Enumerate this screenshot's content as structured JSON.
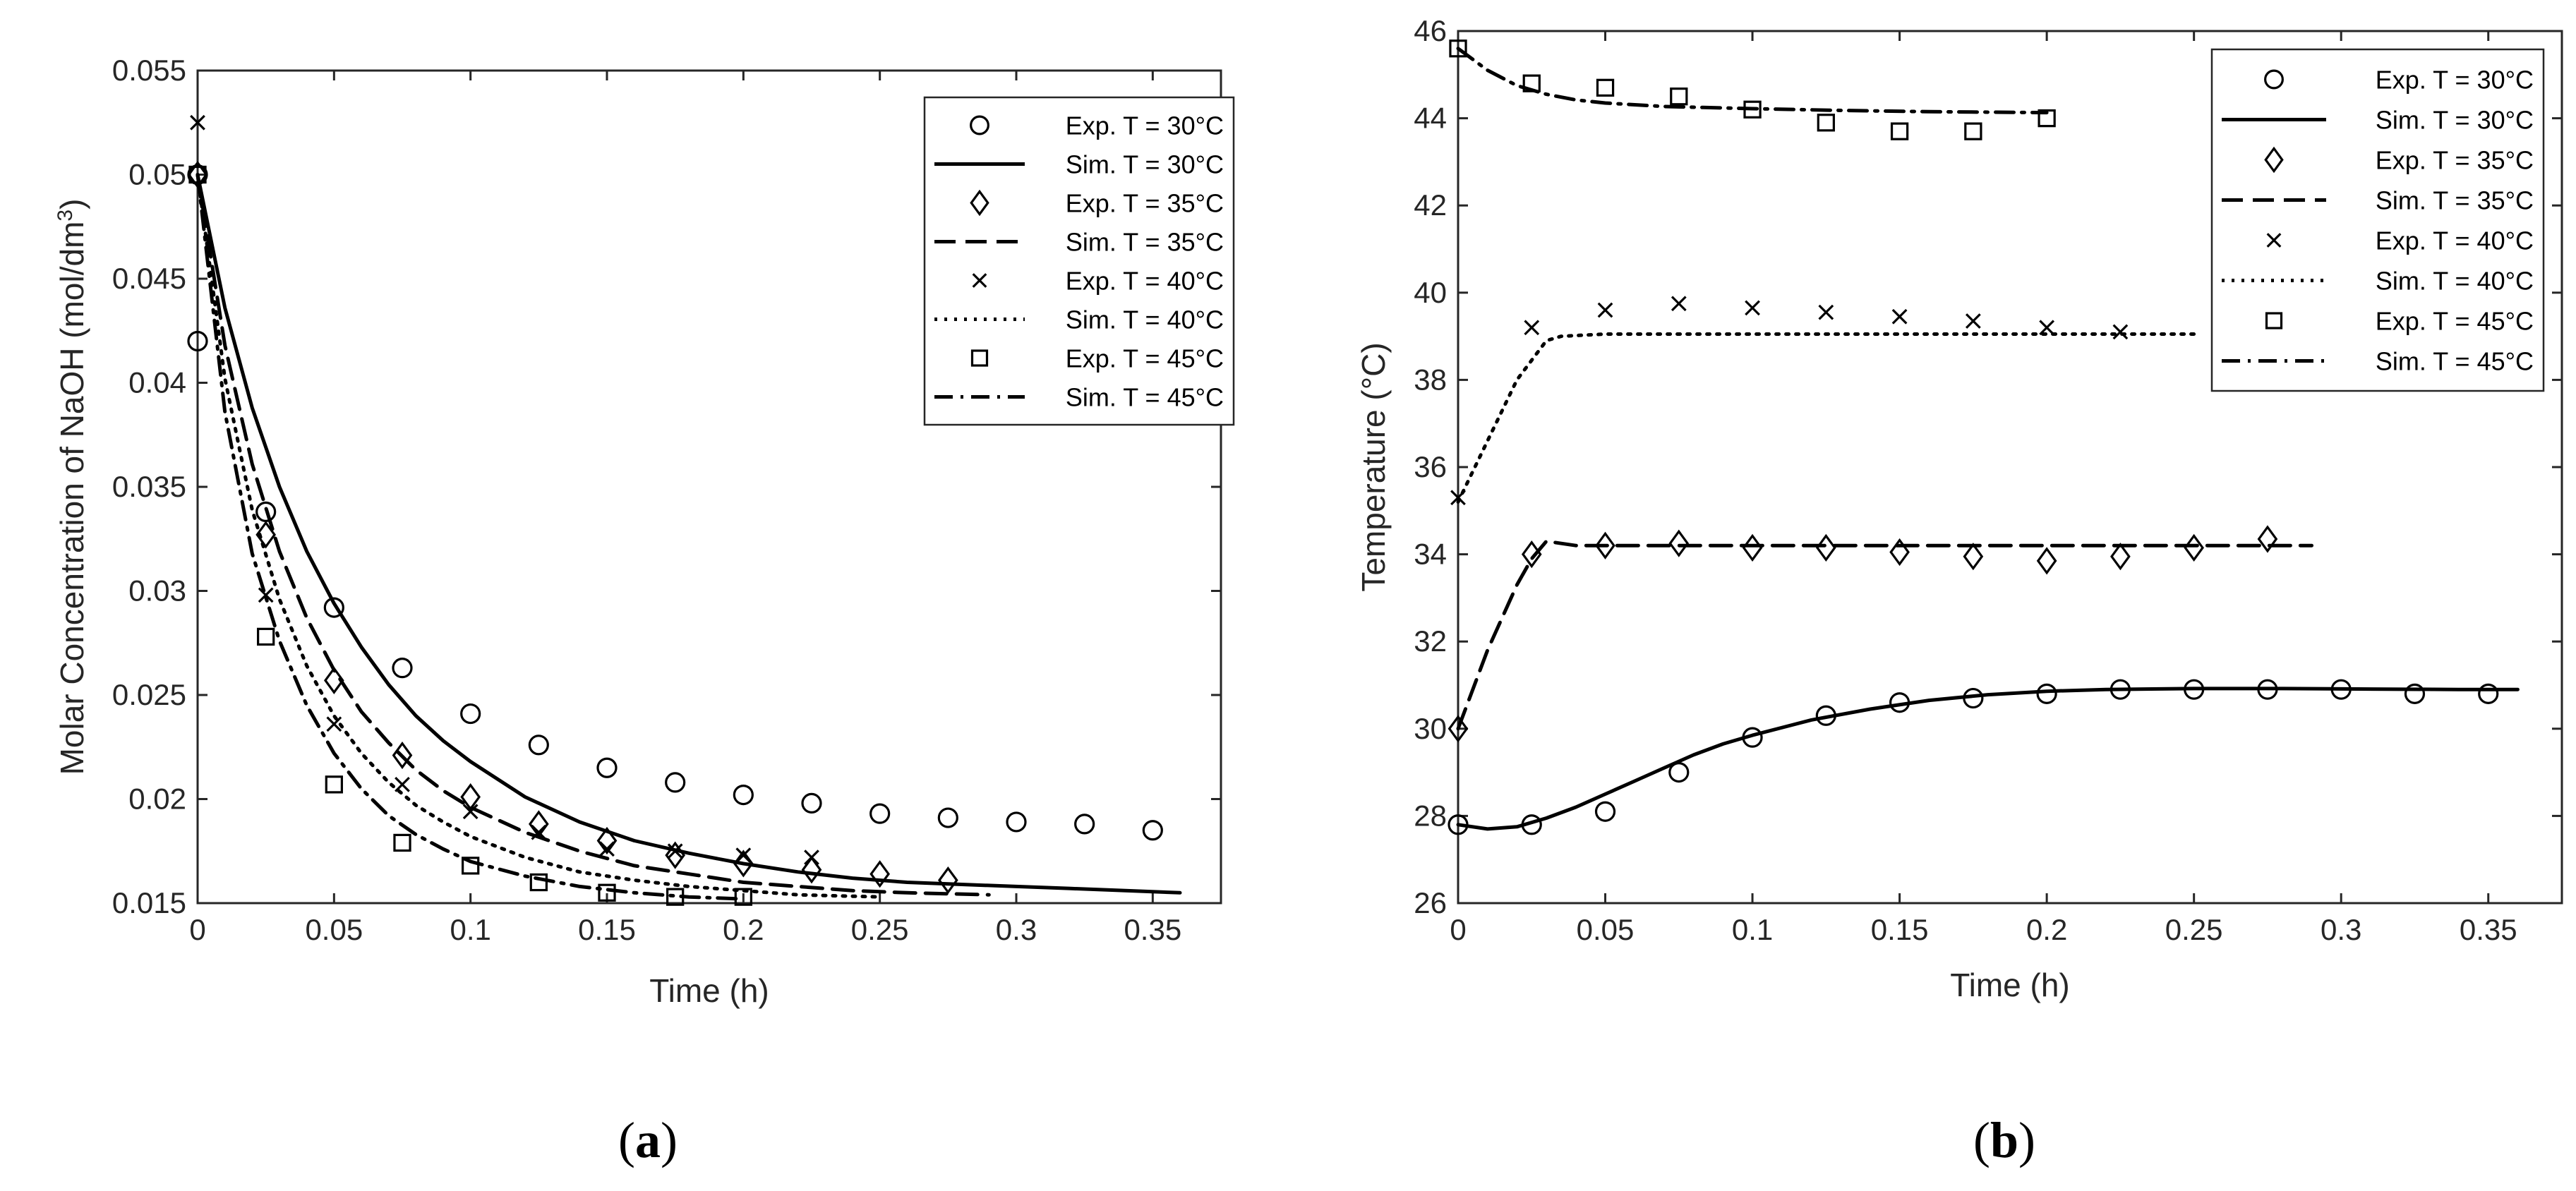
{
  "chart_data": [
    {
      "type": "line",
      "caption_letter": "a",
      "xlabel": "Time (h)",
      "ylabel_text": "Molar Concentration of NaOH (mol/dm",
      "ylabel_sup": "3",
      "ylabel_close": ")",
      "xlim": [
        0,
        0.375
      ],
      "ylim": [
        0.015,
        0.055
      ],
      "xticks": [
        0,
        0.05,
        0.1,
        0.15,
        0.2,
        0.25,
        0.3,
        0.35
      ],
      "xtick_labels": [
        "0",
        "0.05",
        "0.1",
        "0.15",
        "0.2",
        "0.25",
        "0.3",
        "0.35"
      ],
      "yticks": [
        0.015,
        0.02,
        0.025,
        0.03,
        0.035,
        0.04,
        0.045,
        0.05,
        0.055
      ],
      "ytick_labels": [
        "0.015",
        "0.02",
        "0.025",
        "0.03",
        "0.035",
        "0.04",
        "0.045",
        "0.05",
        "0.055"
      ],
      "legend_position": "top-right",
      "series": [
        {
          "name": "Exp. T = 30°C",
          "kind": "marker",
          "marker": "circle",
          "x": [
            0,
            0,
            0.025,
            0.05,
            0.075,
            0.1,
            0.125,
            0.15,
            0.175,
            0.2,
            0.225,
            0.25,
            0.275,
            0.3,
            0.325,
            0.35
          ],
          "y": [
            0.042,
            0.05,
            0.0338,
            0.0292,
            0.0263,
            0.0241,
            0.0226,
            0.0215,
            0.0208,
            0.0202,
            0.0198,
            0.0193,
            0.0191,
            0.0189,
            0.0188,
            0.0185
          ]
        },
        {
          "name": "Sim. T = 30°C",
          "kind": "line",
          "dash": "solid",
          "x": [
            0,
            0.01,
            0.02,
            0.03,
            0.04,
            0.05,
            0.06,
            0.07,
            0.08,
            0.09,
            0.1,
            0.12,
            0.14,
            0.16,
            0.18,
            0.2,
            0.22,
            0.24,
            0.26,
            0.28,
            0.3,
            0.32,
            0.34,
            0.36
          ],
          "y": [
            0.05,
            0.0436,
            0.0388,
            0.035,
            0.0319,
            0.0294,
            0.0273,
            0.0255,
            0.024,
            0.0228,
            0.0218,
            0.0201,
            0.0189,
            0.018,
            0.0174,
            0.0169,
            0.0165,
            0.0162,
            0.016,
            0.0159,
            0.0158,
            0.0157,
            0.0156,
            0.0155
          ]
        },
        {
          "name": "Exp. T = 35°C",
          "kind": "marker",
          "marker": "diamond",
          "x": [
            0,
            0.025,
            0.05,
            0.075,
            0.1,
            0.125,
            0.15,
            0.175,
            0.2,
            0.225,
            0.25,
            0.275
          ],
          "y": [
            0.05,
            0.0327,
            0.0257,
            0.0221,
            0.0201,
            0.0188,
            0.018,
            0.0173,
            0.0169,
            0.0166,
            0.0164,
            0.0161
          ]
        },
        {
          "name": "Sim. T = 35°C",
          "kind": "line",
          "dash": "dashed",
          "x": [
            0,
            0.01,
            0.02,
            0.03,
            0.04,
            0.05,
            0.06,
            0.07,
            0.08,
            0.09,
            0.1,
            0.12,
            0.14,
            0.16,
            0.18,
            0.2,
            0.22,
            0.24,
            0.26,
            0.29
          ],
          "y": [
            0.05,
            0.0418,
            0.0361,
            0.0319,
            0.0287,
            0.0262,
            0.0242,
            0.0227,
            0.0214,
            0.0204,
            0.0196,
            0.0184,
            0.0175,
            0.0168,
            0.0164,
            0.016,
            0.0158,
            0.0156,
            0.0155,
            0.0154
          ]
        },
        {
          "name": "Exp. T = 40°C",
          "kind": "marker",
          "marker": "cross",
          "x": [
            0,
            0.025,
            0.05,
            0.075,
            0.1,
            0.125,
            0.15,
            0.175,
            0.2,
            0.225
          ],
          "y": [
            0.0525,
            0.0298,
            0.0236,
            0.0207,
            0.0194,
            0.0184,
            0.0176,
            0.0175,
            0.0173,
            0.0172
          ]
        },
        {
          "name": "Sim. T = 40°C",
          "kind": "line",
          "dash": "dotted",
          "x": [
            0,
            0.01,
            0.02,
            0.03,
            0.04,
            0.05,
            0.06,
            0.07,
            0.08,
            0.09,
            0.1,
            0.12,
            0.14,
            0.16,
            0.18,
            0.2,
            0.22,
            0.25
          ],
          "y": [
            0.05,
            0.0402,
            0.0339,
            0.0296,
            0.0264,
            0.024,
            0.0222,
            0.0208,
            0.0197,
            0.0189,
            0.0182,
            0.0172,
            0.0165,
            0.0161,
            0.0158,
            0.0156,
            0.0154,
            0.0153
          ]
        },
        {
          "name": "Exp. T = 45°C",
          "kind": "marker",
          "marker": "square",
          "x": [
            0,
            0.025,
            0.05,
            0.075,
            0.1,
            0.125,
            0.15,
            0.175,
            0.2
          ],
          "y": [
            0.05,
            0.0278,
            0.0207,
            0.0179,
            0.0168,
            0.016,
            0.0155,
            0.0153,
            0.0153
          ]
        },
        {
          "name": "Sim. T = 45°C",
          "kind": "line",
          "dash": "dashdot",
          "x": [
            0,
            0.01,
            0.02,
            0.03,
            0.04,
            0.05,
            0.06,
            0.07,
            0.08,
            0.09,
            0.1,
            0.12,
            0.14,
            0.16,
            0.18,
            0.2
          ],
          "y": [
            0.05,
            0.0386,
            0.0318,
            0.0276,
            0.0245,
            0.0222,
            0.0205,
            0.0192,
            0.0183,
            0.0176,
            0.017,
            0.0163,
            0.0158,
            0.0155,
            0.0153,
            0.0152
          ]
        }
      ]
    },
    {
      "type": "line",
      "caption_letter": "b",
      "xlabel": "Time (h)",
      "ylabel_text": "Temperature (°C)",
      "xlim": [
        0,
        0.375
      ],
      "ylim": [
        26,
        46
      ],
      "xticks": [
        0,
        0.05,
        0.1,
        0.15,
        0.2,
        0.25,
        0.3,
        0.35
      ],
      "xtick_labels": [
        "0",
        "0.05",
        "0.1",
        "0.15",
        "0.2",
        "0.25",
        "0.3",
        "0.35"
      ],
      "yticks": [
        26,
        28,
        30,
        32,
        34,
        36,
        38,
        40,
        42,
        44,
        46
      ],
      "ytick_labels": [
        "26",
        "28",
        "30",
        "32",
        "34",
        "36",
        "38",
        "40",
        "42",
        "44",
        "46"
      ],
      "legend_position": "top-right",
      "series": [
        {
          "name": "Exp. T = 30°C",
          "kind": "marker",
          "marker": "circle",
          "x": [
            0,
            0.025,
            0.05,
            0.075,
            0.1,
            0.125,
            0.15,
            0.175,
            0.2,
            0.225,
            0.25,
            0.275,
            0.3,
            0.325,
            0.35
          ],
          "y": [
            27.8,
            27.8,
            28.1,
            29.0,
            29.8,
            30.3,
            30.6,
            30.7,
            30.8,
            30.9,
            30.9,
            30.9,
            30.9,
            30.8,
            30.8
          ]
        },
        {
          "name": "Sim. T = 30°C",
          "kind": "line",
          "dash": "solid",
          "x": [
            0,
            0.01,
            0.02,
            0.03,
            0.04,
            0.05,
            0.06,
            0.07,
            0.08,
            0.09,
            0.1,
            0.12,
            0.14,
            0.16,
            0.18,
            0.2,
            0.22,
            0.25,
            0.28,
            0.31,
            0.34,
            0.36
          ],
          "y": [
            27.8,
            27.7,
            27.75,
            27.95,
            28.2,
            28.5,
            28.8,
            29.1,
            29.4,
            29.65,
            29.85,
            30.2,
            30.45,
            30.65,
            30.78,
            30.86,
            30.9,
            30.92,
            30.92,
            30.91,
            30.9,
            30.9
          ]
        },
        {
          "name": "Exp. T = 35°C",
          "kind": "marker",
          "marker": "diamond",
          "x": [
            0,
            0.025,
            0.05,
            0.075,
            0.1,
            0.125,
            0.15,
            0.175,
            0.2,
            0.225,
            0.25,
            0.275
          ],
          "y": [
            30.0,
            34.0,
            34.2,
            34.25,
            34.15,
            34.15,
            34.05,
            33.95,
            33.85,
            33.95,
            34.15,
            34.35
          ]
        },
        {
          "name": "Sim. T = 35°C",
          "kind": "line",
          "dash": "dashed",
          "x": [
            0,
            0.01,
            0.02,
            0.025,
            0.03,
            0.04,
            0.08,
            0.15,
            0.2,
            0.25,
            0.29
          ],
          "y": [
            30.0,
            31.8,
            33.3,
            33.9,
            34.3,
            34.2,
            34.2,
            34.2,
            34.2,
            34.2,
            34.2
          ]
        },
        {
          "name": "Exp. T = 40°C",
          "kind": "marker",
          "marker": "cross",
          "x": [
            0,
            0.025,
            0.05,
            0.075,
            0.1,
            0.125,
            0.15,
            0.175,
            0.2,
            0.225
          ],
          "y": [
            35.3,
            39.2,
            39.6,
            39.75,
            39.65,
            39.55,
            39.45,
            39.35,
            39.2,
            39.1
          ]
        },
        {
          "name": "Sim. T = 40°C",
          "kind": "line",
          "dash": "dotted",
          "x": [
            0,
            0.01,
            0.02,
            0.03,
            0.035,
            0.05,
            0.1,
            0.15,
            0.2,
            0.25
          ],
          "y": [
            35.2,
            36.6,
            38.0,
            38.9,
            39.0,
            39.05,
            39.05,
            39.05,
            39.05,
            39.05
          ]
        },
        {
          "name": "Exp. T = 45°C",
          "kind": "marker",
          "marker": "square",
          "x": [
            0,
            0.025,
            0.05,
            0.075,
            0.1,
            0.125,
            0.15,
            0.175,
            0.2
          ],
          "y": [
            45.6,
            44.8,
            44.7,
            44.5,
            44.2,
            43.9,
            43.7,
            43.7,
            44.0
          ]
        },
        {
          "name": "Sim. T = 45°C",
          "kind": "line",
          "dash": "dashdot",
          "x": [
            0,
            0.01,
            0.02,
            0.03,
            0.04,
            0.05,
            0.07,
            0.1,
            0.13,
            0.16,
            0.2
          ],
          "y": [
            45.6,
            45.1,
            44.75,
            44.55,
            44.42,
            44.35,
            44.27,
            44.22,
            44.18,
            44.15,
            44.13
          ]
        }
      ]
    }
  ]
}
